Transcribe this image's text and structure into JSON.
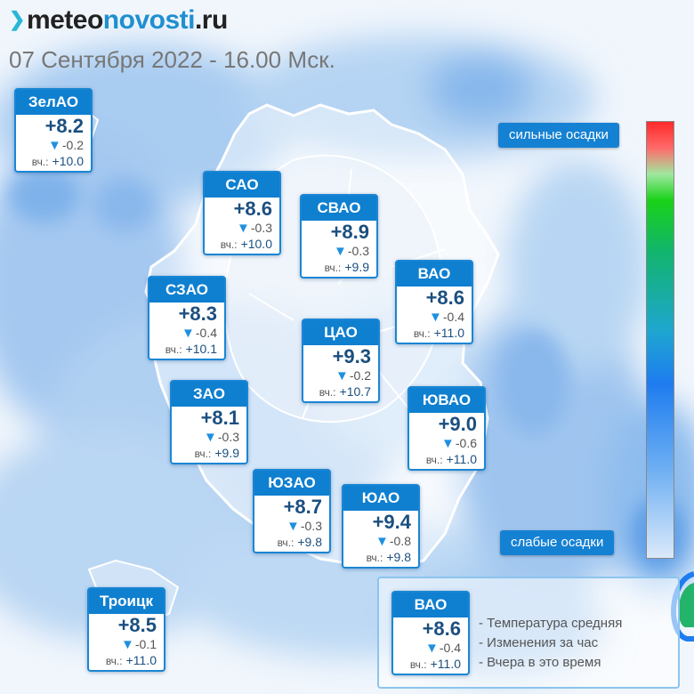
{
  "brand": {
    "part1": "meteo",
    "part2": "novosti",
    "part3": ".ru"
  },
  "date_line": "07 Сентября 2022 - 16.00 Мск.",
  "yesterday_prefix": "вч.:",
  "districts": [
    {
      "name": "ЗелАО",
      "temp": "+8.2",
      "change": "-0.2",
      "yesterday": "+10.0"
    },
    {
      "name": "САО",
      "temp": "+8.6",
      "change": "-0.3",
      "yesterday": "+10.0"
    },
    {
      "name": "СВАО",
      "temp": "+8.9",
      "change": "-0.3",
      "yesterday": "+9.9"
    },
    {
      "name": "ВАО",
      "temp": "+8.6",
      "change": "-0.4",
      "yesterday": "+11.0"
    },
    {
      "name": "СЗАО",
      "temp": "+8.3",
      "change": "-0.4",
      "yesterday": "+10.1"
    },
    {
      "name": "ЦАО",
      "temp": "+9.3",
      "change": "-0.2",
      "yesterday": "+10.7"
    },
    {
      "name": "ЗАО",
      "temp": "+8.1",
      "change": "-0.3",
      "yesterday": "+9.9"
    },
    {
      "name": "ЮВАО",
      "temp": "+9.0",
      "change": "-0.6",
      "yesterday": "+11.0"
    },
    {
      "name": "ЮЗАО",
      "temp": "+8.7",
      "change": "-0.3",
      "yesterday": "+9.8"
    },
    {
      "name": "ЮАО",
      "temp": "+9.4",
      "change": "-0.8",
      "yesterday": "+9.8"
    },
    {
      "name": "Троицк",
      "temp": "+8.5",
      "change": "-0.1",
      "yesterday": "+11.0"
    }
  ],
  "scale": {
    "top_label": "сильные осадки",
    "bottom_label": "слабые осадки"
  },
  "legend": {
    "sample": {
      "name": "ВАО",
      "temp": "+8.6",
      "change": "-0.4",
      "yesterday": "+11.0"
    },
    "lines": [
      "- Температура средняя",
      "- Изменения за час",
      "- Вчера в это время"
    ]
  },
  "colors": {
    "card_header": "#0f7fd0",
    "temp_text": "#1b4f80",
    "precip_light": "#cfe2f7",
    "precip_heavy": "#ff2a2a"
  }
}
